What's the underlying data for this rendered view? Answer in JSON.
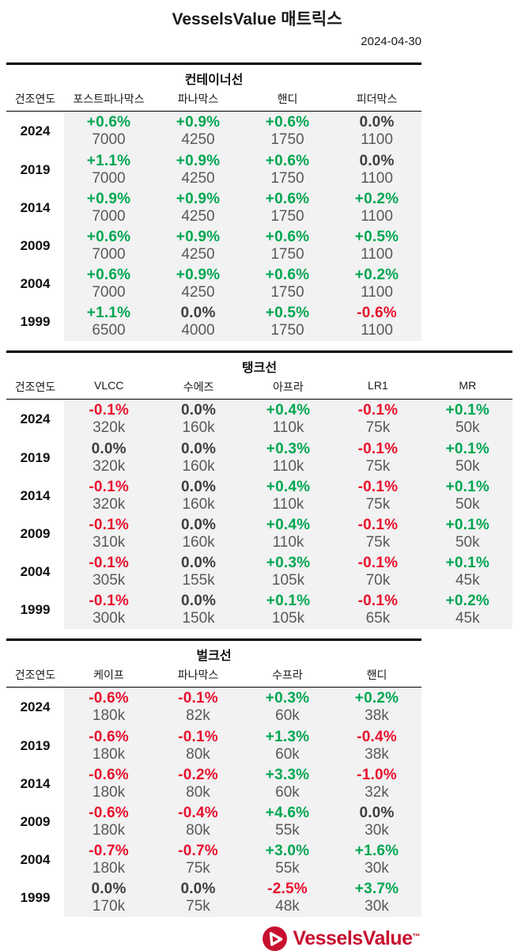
{
  "header": {
    "title": "VesselsValue 매트릭스",
    "date": "2024-04-30"
  },
  "colors": {
    "positive": "#00a651",
    "negative": "#e8112d",
    "neutral": "#3f3f3f",
    "value_gray": "#595959",
    "row_background": "#f2f2f2",
    "logo_red": "#c8102e"
  },
  "tables": [
    {
      "id": "container-ships",
      "title": "컨테이너선",
      "year_header": "건조연도",
      "columns": [
        "포스트파나막스",
        "파나막스",
        "핸디",
        "피더막스"
      ],
      "rows": [
        {
          "year": "2024",
          "cells": [
            {
              "pct": "+0.6%",
              "value": "7000"
            },
            {
              "pct": "+0.9%",
              "value": "4250"
            },
            {
              "pct": "+0.6%",
              "value": "1750"
            },
            {
              "pct": "0.0%",
              "value": "1100"
            }
          ]
        },
        {
          "year": "2019",
          "cells": [
            {
              "pct": "+1.1%",
              "value": "7000"
            },
            {
              "pct": "+0.9%",
              "value": "4250"
            },
            {
              "pct": "+0.6%",
              "value": "1750"
            },
            {
              "pct": "0.0%",
              "value": "1100"
            }
          ]
        },
        {
          "year": "2014",
          "cells": [
            {
              "pct": "+0.9%",
              "value": "7000"
            },
            {
              "pct": "+0.9%",
              "value": "4250"
            },
            {
              "pct": "+0.6%",
              "value": "1750"
            },
            {
              "pct": "+0.2%",
              "value": "1100"
            }
          ]
        },
        {
          "year": "2009",
          "cells": [
            {
              "pct": "+0.6%",
              "value": "7000"
            },
            {
              "pct": "+0.9%",
              "value": "4250"
            },
            {
              "pct": "+0.6%",
              "value": "1750"
            },
            {
              "pct": "+0.5%",
              "value": "1100"
            }
          ]
        },
        {
          "year": "2004",
          "cells": [
            {
              "pct": "+0.6%",
              "value": "7000"
            },
            {
              "pct": "+0.9%",
              "value": "4250"
            },
            {
              "pct": "+0.6%",
              "value": "1750"
            },
            {
              "pct": "+0.2%",
              "value": "1100"
            }
          ]
        },
        {
          "year": "1999",
          "cells": [
            {
              "pct": "+1.1%",
              "value": "6500"
            },
            {
              "pct": "0.0%",
              "value": "4000"
            },
            {
              "pct": "+0.5%",
              "value": "1750"
            },
            {
              "pct": "-0.6%",
              "value": "1100"
            }
          ]
        }
      ]
    },
    {
      "id": "tankers",
      "title": "탱크선",
      "year_header": "건조연도",
      "columns": [
        "VLCC",
        "수에즈",
        "아프라",
        "LR1",
        "MR"
      ],
      "rows": [
        {
          "year": "2024",
          "cells": [
            {
              "pct": "-0.1%",
              "value": "320k"
            },
            {
              "pct": "0.0%",
              "value": "160k"
            },
            {
              "pct": "+0.4%",
              "value": "110k"
            },
            {
              "pct": "-0.1%",
              "value": "75k"
            },
            {
              "pct": "+0.1%",
              "value": "50k"
            }
          ]
        },
        {
          "year": "2019",
          "cells": [
            {
              "pct": "0.0%",
              "value": "320k"
            },
            {
              "pct": "0.0%",
              "value": "160k"
            },
            {
              "pct": "+0.3%",
              "value": "110k"
            },
            {
              "pct": "-0.1%",
              "value": "75k"
            },
            {
              "pct": "+0.1%",
              "value": "50k"
            }
          ]
        },
        {
          "year": "2014",
          "cells": [
            {
              "pct": "-0.1%",
              "value": "320k"
            },
            {
              "pct": "0.0%",
              "value": "160k"
            },
            {
              "pct": "+0.4%",
              "value": "110k"
            },
            {
              "pct": "-0.1%",
              "value": "75k"
            },
            {
              "pct": "+0.1%",
              "value": "50k"
            }
          ]
        },
        {
          "year": "2009",
          "cells": [
            {
              "pct": "-0.1%",
              "value": "310k"
            },
            {
              "pct": "0.0%",
              "value": "160k"
            },
            {
              "pct": "+0.4%",
              "value": "110k"
            },
            {
              "pct": "-0.1%",
              "value": "75k"
            },
            {
              "pct": "+0.1%",
              "value": "50k"
            }
          ]
        },
        {
          "year": "2004",
          "cells": [
            {
              "pct": "-0.1%",
              "value": "305k"
            },
            {
              "pct": "0.0%",
              "value": "155k"
            },
            {
              "pct": "+0.3%",
              "value": "105k"
            },
            {
              "pct": "-0.1%",
              "value": "70k"
            },
            {
              "pct": "+0.1%",
              "value": "45k"
            }
          ]
        },
        {
          "year": "1999",
          "cells": [
            {
              "pct": "-0.1%",
              "value": "300k"
            },
            {
              "pct": "0.0%",
              "value": "150k"
            },
            {
              "pct": "+0.1%",
              "value": "105k"
            },
            {
              "pct": "-0.1%",
              "value": "65k"
            },
            {
              "pct": "+0.2%",
              "value": "45k"
            }
          ]
        }
      ]
    },
    {
      "id": "bulkers",
      "title": "벌크선",
      "year_header": "건조연도",
      "columns": [
        "케이프",
        "파나막스",
        "수프라",
        "핸디"
      ],
      "rows": [
        {
          "year": "2024",
          "cells": [
            {
              "pct": "-0.6%",
              "value": "180k"
            },
            {
              "pct": "-0.1%",
              "value": "82k"
            },
            {
              "pct": "+0.3%",
              "value": "60k"
            },
            {
              "pct": "+0.2%",
              "value": "38k"
            }
          ]
        },
        {
          "year": "2019",
          "cells": [
            {
              "pct": "-0.6%",
              "value": "180k"
            },
            {
              "pct": "-0.1%",
              "value": "80k"
            },
            {
              "pct": "+1.3%",
              "value": "60k"
            },
            {
              "pct": "-0.4%",
              "value": "38k"
            }
          ]
        },
        {
          "year": "2014",
          "cells": [
            {
              "pct": "-0.6%",
              "value": "180k"
            },
            {
              "pct": "-0.2%",
              "value": "80k"
            },
            {
              "pct": "+3.3%",
              "value": "60k"
            },
            {
              "pct": "-1.0%",
              "value": "32k"
            }
          ]
        },
        {
          "year": "2009",
          "cells": [
            {
              "pct": "-0.6%",
              "value": "180k"
            },
            {
              "pct": "-0.4%",
              "value": "80k"
            },
            {
              "pct": "+4.6%",
              "value": "55k"
            },
            {
              "pct": "0.0%",
              "value": "30k"
            }
          ]
        },
        {
          "year": "2004",
          "cells": [
            {
              "pct": "-0.7%",
              "value": "180k"
            },
            {
              "pct": "-0.7%",
              "value": "75k"
            },
            {
              "pct": "+3.0%",
              "value": "55k"
            },
            {
              "pct": "+1.6%",
              "value": "30k"
            }
          ]
        },
        {
          "year": "1999",
          "cells": [
            {
              "pct": "0.0%",
              "value": "170k"
            },
            {
              "pct": "0.0%",
              "value": "75k"
            },
            {
              "pct": "-2.5%",
              "value": "48k"
            },
            {
              "pct": "+3.7%",
              "value": "30k"
            }
          ]
        }
      ]
    }
  ],
  "footer": {
    "logo_icon": "vesselsvalue-circle-triangle",
    "logo_text": "VesselsValue",
    "trademark": "™"
  }
}
